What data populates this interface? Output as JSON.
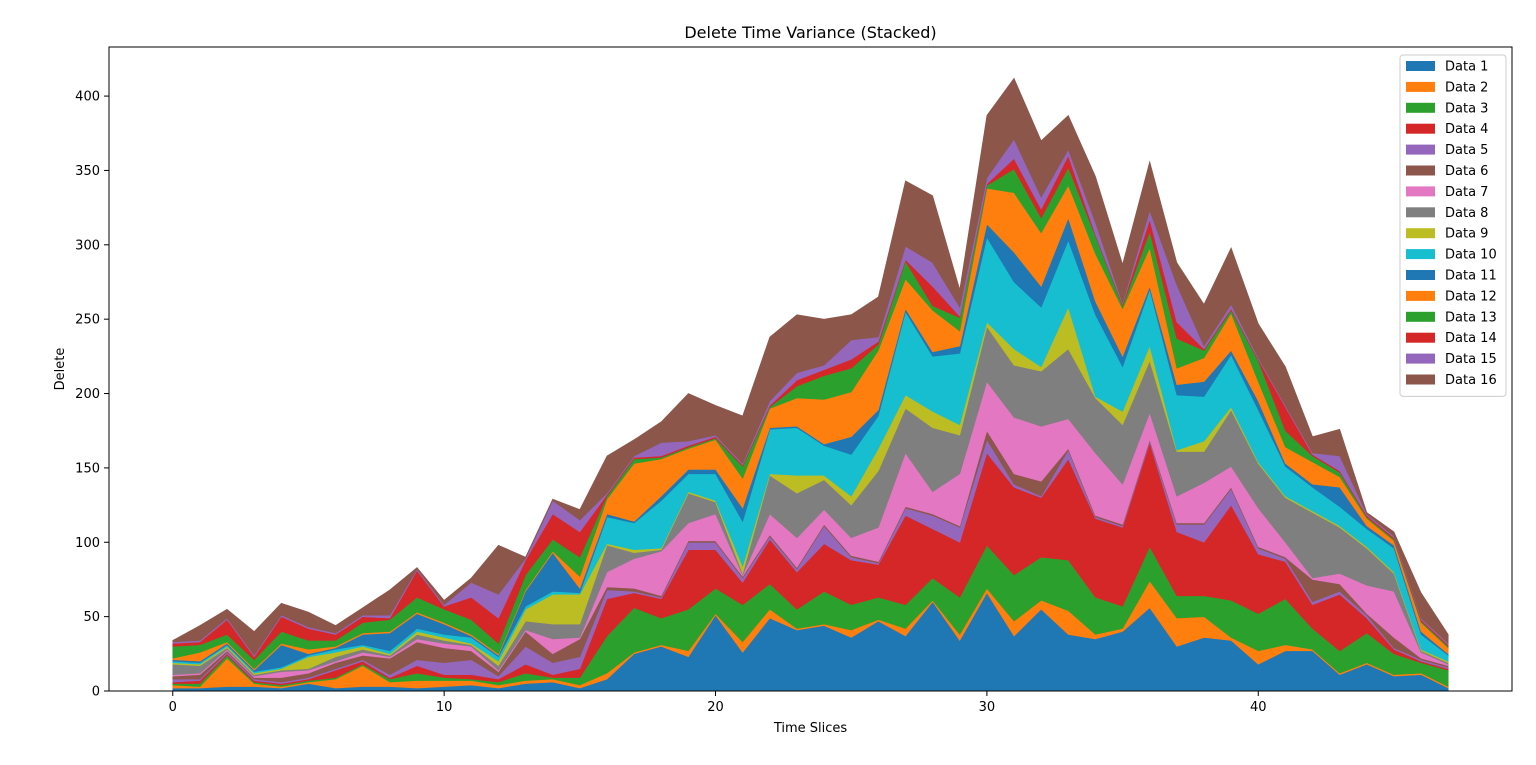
{
  "chart_data": {
    "type": "area",
    "stacked": true,
    "title": "Delete Time Variance (Stacked)",
    "xlabel": "Time Slices",
    "ylabel": "Delete",
    "xlim": [
      -2.35,
      49.35
    ],
    "ylim": [
      0,
      433
    ],
    "xticks": [
      0,
      10,
      20,
      30,
      40
    ],
    "yticks": [
      0,
      50,
      100,
      150,
      200,
      250,
      300,
      350,
      400
    ],
    "grid": false,
    "legend": "top-right",
    "x": [
      0,
      1,
      2,
      3,
      4,
      5,
      6,
      7,
      8,
      9,
      10,
      11,
      12,
      13,
      14,
      15,
      16,
      17,
      18,
      19,
      20,
      21,
      22,
      23,
      24,
      25,
      26,
      27,
      28,
      29,
      30,
      31,
      32,
      33,
      34,
      35,
      36,
      37,
      38,
      39,
      40,
      41,
      42,
      43,
      44,
      45,
      46,
      47
    ],
    "series": [
      {
        "name": "Data 1",
        "color": "#1f77b4",
        "values": [
          2,
          2,
          3,
          3,
          2,
          5,
          2,
          3,
          3,
          2,
          3,
          4,
          2,
          5,
          6,
          2,
          8,
          25,
          30,
          23,
          51,
          26,
          49,
          41,
          44,
          36,
          47,
          37,
          60,
          34,
          66,
          37,
          55,
          38,
          35,
          40,
          56,
          30,
          36,
          34,
          18,
          27,
          27,
          11,
          18,
          10,
          11,
          2
        ]
      },
      {
        "name": "Data 2",
        "color": "#ff7f0e",
        "values": [
          2,
          1,
          19,
          2,
          1,
          1,
          6,
          14,
          3,
          5,
          4,
          3,
          2,
          2,
          2,
          2,
          4,
          1,
          1,
          4,
          1,
          7,
          6,
          1,
          1,
          5,
          1,
          5,
          1,
          4,
          3,
          10,
          6,
          16,
          3,
          2,
          18,
          19,
          14,
          2,
          9,
          4,
          1,
          1,
          1,
          1,
          1,
          1
        ]
      },
      {
        "name": "Data 3",
        "color": "#2ca02c",
        "values": [
          1,
          2,
          2,
          1,
          1,
          1,
          1,
          1,
          2,
          5,
          2,
          1,
          2,
          5,
          1,
          5,
          25,
          30,
          18,
          28,
          17,
          25,
          17,
          13,
          22,
          17,
          15,
          16,
          15,
          25,
          29,
          31,
          29,
          34,
          25,
          15,
          23,
          15,
          14,
          25,
          25,
          31,
          14,
          15,
          20,
          14,
          7,
          11
        ]
      },
      {
        "name": "Data 4",
        "color": "#d62728",
        "values": [
          1,
          2,
          1,
          1,
          1,
          1,
          5,
          2,
          1,
          5,
          2,
          3,
          2,
          6,
          2,
          6,
          25,
          10,
          13,
          40,
          26,
          15,
          30,
          25,
          32,
          30,
          22,
          60,
          33,
          37,
          62,
          59,
          40,
          68,
          53,
          53,
          70,
          43,
          36,
          64,
          40,
          25,
          16,
          38,
          10,
          3,
          1,
          1
        ]
      },
      {
        "name": "Data 5",
        "color": "#9467bd",
        "values": [
          2,
          1,
          1,
          1,
          1,
          1,
          1,
          1,
          2,
          4,
          8,
          10,
          2,
          12,
          8,
          8,
          6,
          1,
          1,
          5,
          5,
          3,
          2,
          2,
          12,
          2,
          1,
          5,
          9,
          10,
          9,
          2,
          1,
          6,
          1,
          1,
          1,
          5,
          12,
          11,
          4,
          2,
          2,
          2,
          2,
          1,
          1,
          1
        ]
      },
      {
        "name": "Data 6",
        "color": "#8c564b",
        "values": [
          2,
          3,
          1,
          1,
          3,
          3,
          4,
          3,
          11,
          12,
          10,
          6,
          3,
          10,
          6,
          12,
          2,
          2,
          1,
          1,
          1,
          1,
          1,
          1,
          1,
          1,
          1,
          1,
          1,
          1,
          6,
          7,
          10,
          1,
          1,
          1,
          1,
          1,
          1,
          1,
          1,
          1,
          15,
          5,
          1,
          7,
          1,
          1
        ]
      },
      {
        "name": "Data 7",
        "color": "#e377c2",
        "values": [
          1,
          1,
          1,
          1,
          4,
          2,
          1,
          2,
          1,
          2,
          3,
          3,
          1,
          1,
          10,
          1,
          10,
          20,
          30,
          12,
          18,
          1,
          14,
          20,
          10,
          12,
          23,
          36,
          15,
          35,
          33,
          38,
          37,
          20,
          42,
          27,
          18,
          18,
          27,
          14,
          26,
          10,
          1,
          7,
          19,
          31,
          4,
          1
        ]
      },
      {
        "name": "Data 8",
        "color": "#7f7f7f",
        "values": [
          7,
          5,
          1,
          1,
          1,
          1,
          3,
          2,
          1,
          3,
          2,
          1,
          3,
          6,
          10,
          9,
          18,
          4,
          1,
          20,
          8,
          1,
          26,
          30,
          20,
          22,
          38,
          30,
          43,
          26,
          37,
          35,
          37,
          47,
          37,
          40,
          35,
          30,
          21,
          38,
          30,
          30,
          44,
          31,
          25,
          12,
          1,
          1
        ]
      },
      {
        "name": "Data 9",
        "color": "#bcbd22",
        "values": [
          1,
          1,
          1,
          1,
          1,
          8,
          3,
          2,
          1,
          2,
          2,
          1,
          3,
          8,
          20,
          20,
          1,
          2,
          1,
          1,
          1,
          5,
          1,
          12,
          3,
          6,
          15,
          9,
          11,
          7,
          3,
          11,
          3,
          28,
          1,
          9,
          10,
          1,
          7,
          2,
          1,
          1,
          1,
          1,
          1,
          1,
          1,
          1
        ]
      },
      {
        "name": "Data 10",
        "color": "#17becf",
        "values": [
          1,
          1,
          1,
          1,
          1,
          1,
          2,
          1,
          2,
          2,
          2,
          4,
          3,
          2,
          2,
          1,
          18,
          18,
          32,
          12,
          18,
          30,
          30,
          32,
          20,
          28,
          22,
          56,
          37,
          48,
          57,
          45,
          40,
          45,
          55,
          30,
          38,
          37,
          30,
          35,
          35,
          20,
          16,
          13,
          12,
          16,
          10,
          4
        ]
      },
      {
        "name": "Data 11",
        "color": "#1f77b4",
        "values": [
          1,
          1,
          1,
          1,
          15,
          1,
          1,
          7,
          12,
          10,
          7,
          1,
          1,
          10,
          26,
          3,
          2,
          1,
          3,
          3,
          3,
          9,
          1,
          1,
          1,
          12,
          4,
          2,
          3,
          5,
          9,
          20,
          14,
          15,
          9,
          7,
          2,
          7,
          10,
          3,
          6,
          2,
          2,
          13,
          2,
          2,
          2,
          1
        ]
      },
      {
        "name": "Data 12",
        "color": "#ff7f0e",
        "values": [
          1,
          6,
          1,
          1,
          1,
          3,
          1,
          1,
          1,
          1,
          1,
          1,
          1,
          1,
          1,
          8,
          10,
          39,
          25,
          14,
          20,
          20,
          13,
          19,
          30,
          30,
          40,
          20,
          28,
          10,
          24,
          40,
          36,
          22,
          32,
          32,
          26,
          11,
          16,
          25,
          13,
          11,
          15,
          7,
          5,
          3,
          6,
          4
        ]
      },
      {
        "name": "Data 13",
        "color": "#2ca02c",
        "values": [
          8,
          5,
          5,
          6,
          8,
          6,
          4,
          7,
          8,
          10,
          9,
          10,
          7,
          10,
          8,
          13,
          2,
          3,
          1,
          1,
          1,
          8,
          1,
          8,
          16,
          16,
          4,
          12,
          3,
          9,
          2,
          16,
          10,
          12,
          12,
          2,
          11,
          20,
          5,
          2,
          14,
          11,
          4,
          3,
          1,
          1,
          1,
          1
        ]
      },
      {
        "name": "Data 14",
        "color": "#d62728",
        "values": [
          2,
          2,
          10,
          2,
          10,
          8,
          4,
          4,
          1,
          18,
          2,
          15,
          17,
          10,
          17,
          17,
          1,
          1,
          1,
          1,
          1,
          1,
          1,
          4,
          4,
          6,
          2,
          1,
          13,
          1,
          1,
          7,
          6,
          8,
          1,
          1,
          8,
          11,
          1,
          1,
          1,
          16,
          1,
          1,
          1,
          1,
          1,
          1
        ]
      },
      {
        "name": "Data 15",
        "color": "#9467bd",
        "values": [
          1,
          1,
          1,
          1,
          1,
          1,
          1,
          1,
          2,
          1,
          1,
          10,
          16,
          1,
          9,
          8,
          1,
          1,
          9,
          3,
          1,
          1,
          3,
          5,
          3,
          13,
          3,
          9,
          16,
          6,
          4,
          13,
          8,
          4,
          8,
          1,
          6,
          25,
          2,
          3,
          1,
          1,
          1,
          10,
          1,
          1,
          1,
          1
        ]
      },
      {
        "name": "Data 16",
        "color": "#8c564b",
        "values": [
          1,
          10,
          6,
          16,
          8,
          10,
          5,
          5,
          17,
          1,
          3,
          3,
          33,
          1,
          1,
          7,
          25,
          11,
          14,
          32,
          20,
          32,
          43,
          39,
          31,
          17,
          27,
          44,
          45,
          12,
          42,
          41,
          38,
          23,
          31,
          26,
          33,
          15,
          28,
          38,
          23,
          26,
          11,
          18,
          1,
          3,
          17,
          6
        ]
      }
    ]
  }
}
